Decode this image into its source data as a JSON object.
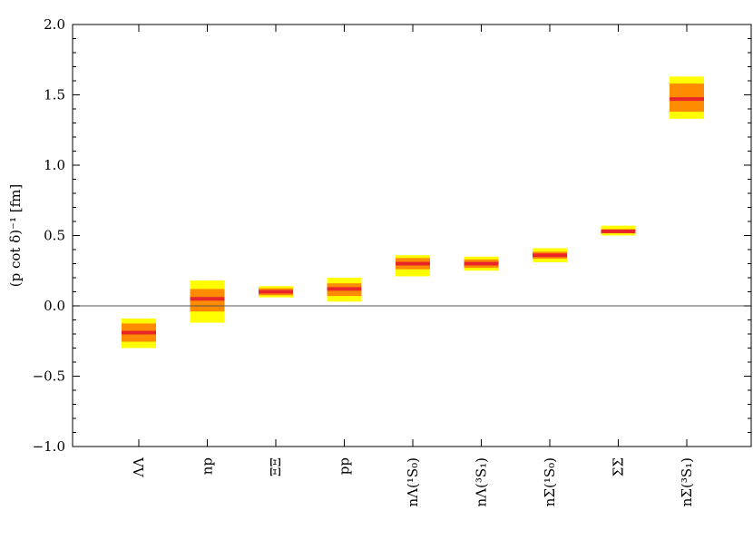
{
  "chart_data": {
    "type": "errorbar",
    "ylabel": "(p cot δ)⁻¹ [fm]",
    "ylim": [
      -1.0,
      2.0
    ],
    "yticks": [
      -1.0,
      -0.5,
      0.0,
      0.5,
      1.0,
      1.5,
      2.0
    ],
    "ytick_labels": [
      "−1.0",
      "−0.5",
      "0.0",
      "0.5",
      "1.0",
      "1.5",
      "2.0"
    ],
    "zero_line": true,
    "colors": {
      "central": "#e8262a",
      "inner_band": "#ff8c00",
      "outer_band": "#ffff00"
    },
    "categories": [
      "ΛΛ",
      "np",
      "ΞΞ",
      "pp",
      "nΛ(¹S₀)",
      "nΛ(³S₁)",
      "nΣ(¹S₀)",
      "ΣΣ",
      "nΣ(³S₁)"
    ],
    "points": [
      {
        "category": "ΛΛ",
        "value": -0.19,
        "inner": [
          -0.255,
          -0.125
        ],
        "outer": [
          -0.3,
          -0.09
        ]
      },
      {
        "category": "np",
        "value": 0.05,
        "inner": [
          -0.04,
          0.12
        ],
        "outer": [
          -0.12,
          0.18
        ]
      },
      {
        "category": "ΞΞ",
        "value": 0.1,
        "inner": [
          0.075,
          0.125
        ],
        "outer": [
          0.06,
          0.14
        ]
      },
      {
        "category": "pp",
        "value": 0.12,
        "inner": [
          0.07,
          0.16
        ],
        "outer": [
          0.03,
          0.2
        ]
      },
      {
        "category": "nΛ(¹S₀)",
        "value": 0.3,
        "inner": [
          0.26,
          0.34
        ],
        "outer": [
          0.21,
          0.36
        ]
      },
      {
        "category": "nΛ(³S₁)",
        "value": 0.3,
        "inner": [
          0.27,
          0.33
        ],
        "outer": [
          0.25,
          0.35
        ]
      },
      {
        "category": "nΣ(¹S₀)",
        "value": 0.36,
        "inner": [
          0.335,
          0.385
        ],
        "outer": [
          0.31,
          0.41
        ]
      },
      {
        "category": "ΣΣ",
        "value": 0.53,
        "inner": [
          0.515,
          0.545
        ],
        "outer": [
          0.5,
          0.57
        ]
      },
      {
        "category": "nΣ(³S₁)",
        "value": 1.47,
        "inner": [
          1.38,
          1.58
        ],
        "outer": [
          1.33,
          1.63
        ]
      }
    ]
  }
}
